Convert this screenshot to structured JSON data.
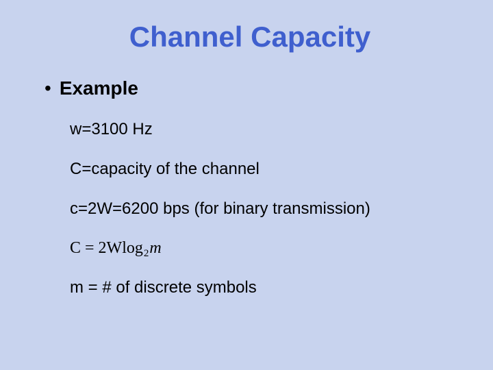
{
  "title": "Channel Capacity",
  "bullet_label": "Example",
  "lines": {
    "l1": "w=3100 Hz",
    "l2": "C=capacity of the channel",
    "l3": "c=2W=6200 bps (for binary transmission)",
    "l5": "m = # of discrete symbols"
  },
  "formula": {
    "p1": "C = 2Wlog",
    "sub": "2",
    "p2": "m"
  },
  "colors": {
    "background": "#c8d3ee",
    "title": "#3f5fce",
    "text": "#000000"
  },
  "fonts": {
    "title_size": 42,
    "bullet_size": 28,
    "body_size": 24,
    "formula_size": 24,
    "sub_size": 15
  }
}
